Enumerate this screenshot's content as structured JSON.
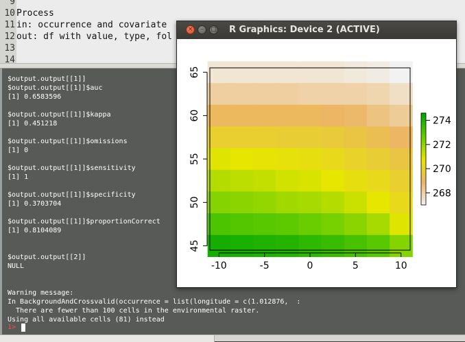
{
  "editor": {
    "lines": [
      {
        "num": "9",
        "text": ""
      },
      {
        "num": "10",
        "text": "Process"
      },
      {
        "num": "11",
        "text": "in: occurrence and covariate"
      },
      {
        "num": "12",
        "text": "out: df with value, type, fol"
      },
      {
        "num": "13",
        "text": ""
      },
      {
        "num": "14",
        "text": ""
      }
    ]
  },
  "console": {
    "lines": [
      "$output.output[[1]]",
      "$output.output[[1]]$auc",
      "[1] 0.6583596",
      "",
      "$output.output[[1]]$kappa",
      "[1] 0.451218",
      "",
      "$output.output[[1]]$omissions",
      "[1] 0",
      "",
      "$output.output[[1]]$sensitivity",
      "[1] 1",
      "",
      "$output.output[[1]]$specificity",
      "[1] 0.3703704",
      "",
      "$output.output[[1]]$proportionCorrect",
      "[1] 0.8104089",
      "",
      "",
      "$output.output[[2]]",
      "NULL",
      "",
      "",
      "Warning message:",
      "In BackgroundAndCrossvalid(occurrence = list(longitude = c(1.012876,  :",
      "  There are fewer than 100 cells in the environmental raster.",
      "Using all available cells (81) instead"
    ],
    "prompt": "1>"
  },
  "rwindow": {
    "title": "R Graphics: Device 2 (ACTIVE)",
    "close_glyph": "×",
    "minimize_glyph": "–",
    "maximize_glyph": "□"
  },
  "chart_data": {
    "type": "heatmap",
    "title": "",
    "xlabel": "",
    "ylabel": "",
    "xlim": [
      -11,
      11
    ],
    "ylim": [
      44.5,
      65.5
    ],
    "x_ticks": [
      -10,
      -5,
      0,
      5,
      10
    ],
    "y_ticks": [
      45,
      50,
      55,
      60,
      65
    ],
    "x_centers": [
      -10,
      -7.5,
      -5,
      -2.5,
      0,
      2.5,
      5,
      7.5,
      10
    ],
    "y_centers": [
      45,
      47.5,
      50,
      52.5,
      55,
      57.5,
      60,
      62.5,
      65
    ],
    "values_top_to_bottom": [
      [
        267.4,
        267.4,
        267.4,
        267.4,
        267.4,
        267.4,
        267.3,
        267.2,
        267.0
      ],
      [
        268.1,
        268.1,
        268.1,
        268.1,
        268.0,
        268.0,
        268.0,
        267.9,
        267.6
      ],
      [
        269.0,
        269.0,
        269.0,
        269.0,
        269.0,
        268.9,
        268.8,
        268.5,
        268.2
      ],
      [
        269.9,
        269.9,
        269.9,
        269.8,
        269.8,
        269.7,
        269.5,
        269.2,
        268.9
      ],
      [
        270.9,
        270.8,
        270.7,
        270.6,
        270.5,
        270.3,
        270.0,
        269.8,
        269.5
      ],
      [
        271.5,
        271.4,
        271.3,
        271.1,
        271.0,
        270.8,
        270.5,
        270.3,
        269.9
      ],
      [
        272.2,
        272.1,
        272.0,
        271.8,
        271.7,
        271.5,
        271.2,
        270.8,
        270.3
      ],
      [
        273.1,
        273.0,
        272.9,
        272.8,
        272.6,
        272.4,
        272.1,
        271.7,
        270.9
      ],
      [
        274.2,
        274.1,
        274.0,
        273.9,
        273.7,
        273.5,
        273.2,
        272.9,
        272.2
      ]
    ],
    "legend": {
      "placement": "right",
      "ticks": [
        268,
        270,
        272,
        274
      ],
      "range": [
        267.0,
        274.6
      ]
    },
    "colormap": "terrain"
  }
}
